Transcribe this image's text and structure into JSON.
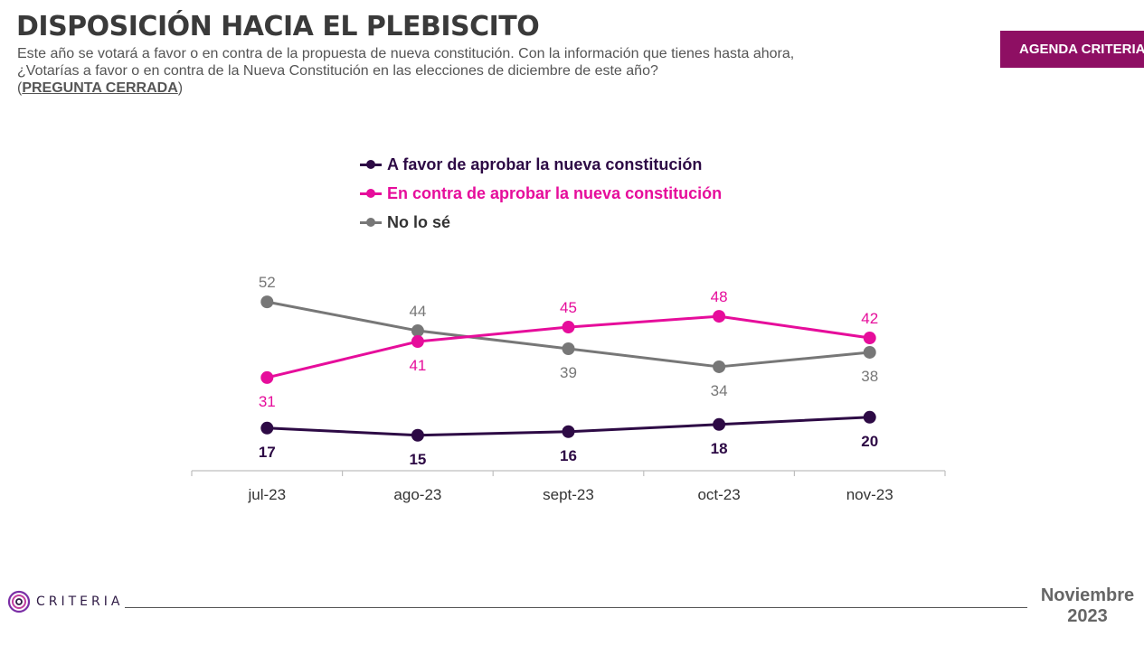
{
  "header": {
    "title": "DISPOSICIÓN HACIA EL PLEBISCITO",
    "subtitle_line1": "Este año se votará a favor o en contra de la propuesta de nueva constitución. Con la información que tienes hasta ahora,",
    "subtitle_line2": "¿Votarías a favor o en contra de la Nueva Constitución en las elecciones de diciembre de este año?",
    "question_type": "PREGUNTA CERRADA",
    "badge": "AGENDA CRITERIA"
  },
  "colors": {
    "favor": "#2d0a45",
    "contra": "#e60d9b",
    "nolose": "#777777",
    "axis": "#bfbfbf",
    "badge": "#8e0f63"
  },
  "chart_data": {
    "type": "line",
    "title": "DISPOSICIÓN HACIA EL PLEBISCITO",
    "xlabel": "",
    "ylabel": "",
    "categories": [
      "jul-23",
      "ago-23",
      "sept-23",
      "oct-23",
      "nov-23"
    ],
    "grid": false,
    "legend_position": "top",
    "series": [
      {
        "key": "favor",
        "name": "A favor de aprobar la nueva constitución",
        "values": [
          17,
          15,
          16,
          18,
          20
        ],
        "label_side": [
          "below",
          "below",
          "below",
          "below",
          "below"
        ]
      },
      {
        "key": "contra",
        "name": "En contra de aprobar la nueva constitución",
        "values": [
          31,
          41,
          45,
          48,
          42
        ],
        "label_side": [
          "below",
          "below",
          "above",
          "above",
          "above"
        ]
      },
      {
        "key": "nolose",
        "name": "No lo sé",
        "values": [
          52,
          44,
          39,
          34,
          38
        ],
        "label_side": [
          "above",
          "above",
          "below",
          "below",
          "below"
        ]
      }
    ]
  },
  "footer": {
    "logo_text": "CRITERIA",
    "date_month": "Noviembre",
    "date_year": "2023"
  }
}
